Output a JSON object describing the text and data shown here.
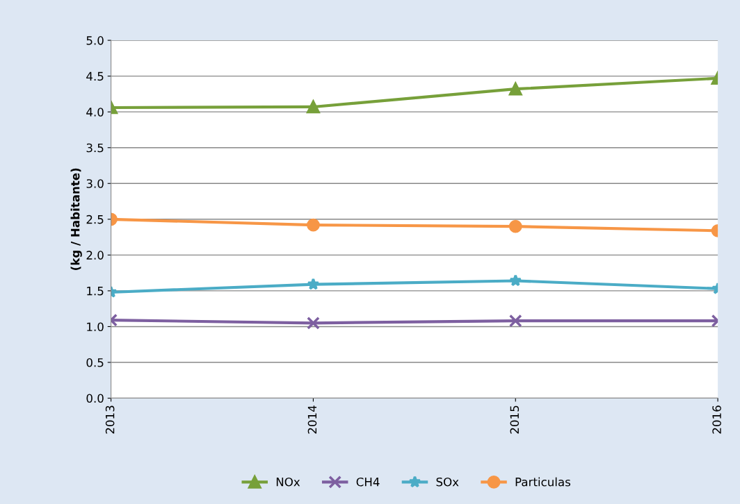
{
  "chart_data": {
    "type": "line",
    "ylabel": "(kg / Habitante)",
    "categories": [
      "2013",
      "2014",
      "2015",
      "2016"
    ],
    "series": [
      {
        "name": "NOx",
        "color": "#77a03a",
        "marker": "triangle",
        "values": [
          4.06,
          4.07,
          4.32,
          4.47
        ]
      },
      {
        "name": "CH4",
        "color": "#7d5fa0",
        "marker": "cross",
        "values": [
          1.09,
          1.05,
          1.08,
          1.08
        ]
      },
      {
        "name": "SOx",
        "color": "#4bacc6",
        "marker": "star",
        "values": [
          1.48,
          1.59,
          1.64,
          1.53
        ]
      },
      {
        "name": "Particulas",
        "color": "#f79646",
        "marker": "circle",
        "values": [
          2.5,
          2.42,
          2.4,
          2.34
        ]
      }
    ],
    "ylim": [
      0,
      5
    ],
    "yticks": [
      {
        "value": 0,
        "label": "0.0"
      },
      {
        "value": 0.5,
        "label": "0.5"
      },
      {
        "value": 1,
        "label": "1.0"
      },
      {
        "value": 1.5,
        "label": "1.5"
      },
      {
        "value": 2,
        "label": "2.0"
      },
      {
        "value": 2.5,
        "label": "2.5"
      },
      {
        "value": 3,
        "label": "3.0"
      },
      {
        "value": 3.5,
        "label": "3.5"
      },
      {
        "value": 4,
        "label": "4.0"
      },
      {
        "value": 4.5,
        "label": "4.5"
      },
      {
        "value": 5,
        "label": "5.0"
      }
    ],
    "grid": "y",
    "legend": "bottom",
    "line_style": "solid"
  }
}
